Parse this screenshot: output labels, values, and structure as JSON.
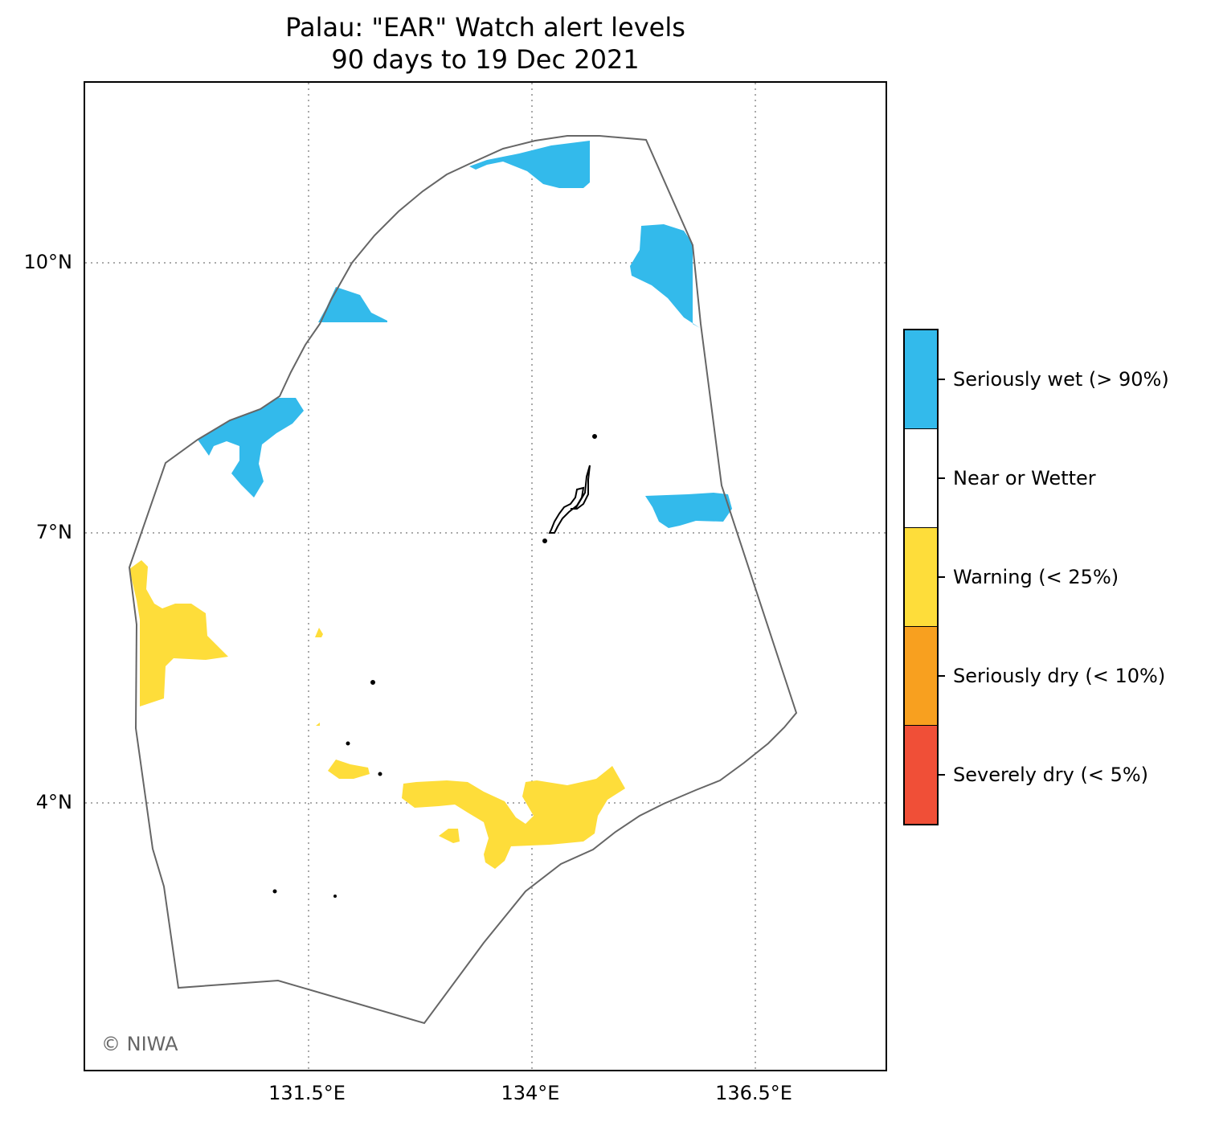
{
  "title": {
    "line1": "Palau: \"EAR\" Watch alert levels",
    "line2": "90 days to 19 Dec 2021"
  },
  "map": {
    "credit": "© NIWA",
    "latitude_labels": [
      "10°N",
      "7°N",
      "4°N"
    ],
    "longitude_labels": [
      "131.5°E",
      "134°E",
      "136.5°E"
    ],
    "gridlines": "dotted",
    "region_outline_color": "#666666",
    "land_color": "#000000"
  },
  "legend": {
    "items": [
      {
        "label": "Seriously wet (> 90%)",
        "color": "#33baeb"
      },
      {
        "label": "Near or Wetter",
        "color": "#ffffff"
      },
      {
        "label": "Warning (< 25%)",
        "color": "#fedd3a"
      },
      {
        "label": "Seriously dry (< 10%)",
        "color": "#f8a01f"
      },
      {
        "label": "Severely dry (< 5%)",
        "color": "#f04f37"
      }
    ]
  }
}
